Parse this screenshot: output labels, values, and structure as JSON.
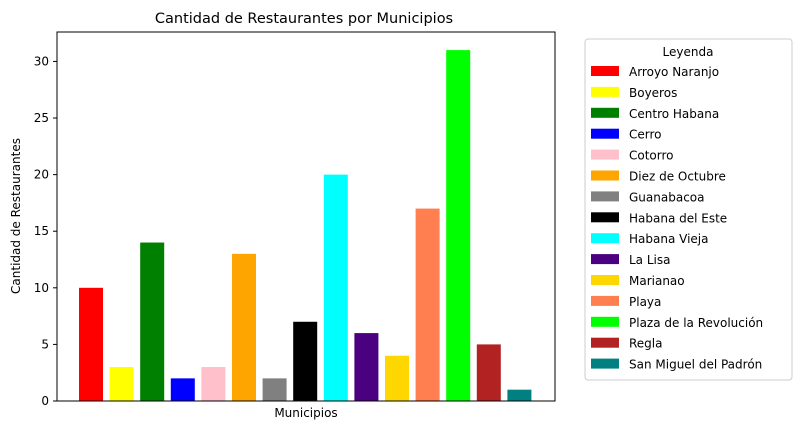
{
  "chart_data": {
    "type": "bar",
    "title": "Cantidad de Restaurantes por Municipios",
    "xlabel": "Municipios",
    "ylabel": "Cantidad de Restaurantes",
    "ylim": [
      0,
      32.6
    ],
    "yticks": [
      0,
      5,
      10,
      15,
      20,
      25,
      30
    ],
    "grid": false,
    "legend": {
      "title": "Leyenda",
      "placement": "outside-right"
    },
    "categories": [
      "Arroyo Naranjo",
      "Boyeros",
      "Centro Habana",
      "Cerro",
      "Cotorro",
      "Diez de Octubre",
      "Guanabacoa",
      "Habana del Este",
      "Habana Vieja",
      "La Lisa",
      "Marianao",
      "Playa",
      "Plaza de la Revolución",
      "Regla",
      "San Miguel del Padrón"
    ],
    "values": [
      10,
      3,
      14,
      2,
      3,
      13,
      2,
      7,
      20,
      6,
      4,
      17,
      31,
      5,
      1
    ],
    "colors": [
      "#ff0000",
      "#ffff00",
      "#008000",
      "#0000ff",
      "#ffc0cb",
      "#ffa500",
      "#808080",
      "#000000",
      "#00ffff",
      "#4b0082",
      "#ffd700",
      "#ff7f50",
      "#00ff00",
      "#b22222",
      "#008080"
    ]
  }
}
